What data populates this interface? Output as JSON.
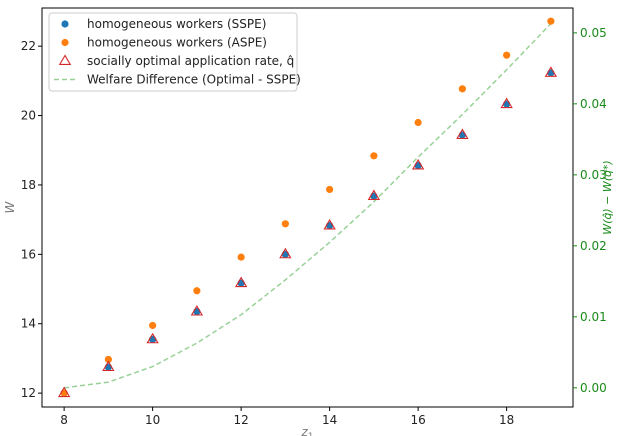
{
  "chart_data": {
    "type": "scatter",
    "xlabel": "z",
    "xlabel_sub": "1",
    "ylabel": "W",
    "ylabel_right": "W(q̂) − W(q*)",
    "xlim": [
      7.5,
      19.5
    ],
    "ylim": [
      11.6,
      23.1
    ],
    "ylim_right": [
      -0.0027,
      0.0535
    ],
    "x_ticks": [
      8,
      10,
      12,
      14,
      16,
      18
    ],
    "y_ticks": [
      12,
      14,
      16,
      18,
      20,
      22
    ],
    "y_ticks_right": [
      0.0,
      0.01,
      0.02,
      0.03,
      0.04,
      0.05
    ],
    "x_tick_labels": [
      "8",
      "10",
      "12",
      "14",
      "16",
      "18"
    ],
    "y_tick_labels": [
      "12",
      "14",
      "16",
      "18",
      "20",
      "22"
    ],
    "y_tick_labels_right": [
      "0.00",
      "0.01",
      "0.02",
      "0.03",
      "0.04",
      "0.05"
    ],
    "x": [
      8,
      9,
      10,
      11,
      12,
      13,
      14,
      15,
      16,
      17,
      18,
      19
    ],
    "series": [
      {
        "name": "homogeneous workers (SSPE)",
        "marker": "circle",
        "color": "#1f77b4",
        "axis": "left",
        "values": [
          12.0,
          12.75,
          13.55,
          14.35,
          15.17,
          16.0,
          16.83,
          17.68,
          18.56,
          19.44,
          20.33,
          21.23
        ]
      },
      {
        "name": "homogeneous workers (ASPE)",
        "marker": "circle",
        "color": "#ff7f0e",
        "axis": "left",
        "values": [
          12.0,
          12.97,
          13.95,
          14.95,
          15.92,
          16.88,
          17.87,
          18.84,
          19.8,
          20.77,
          21.74,
          22.72
        ]
      },
      {
        "name": "socially optimal application rate, q̂",
        "marker": "triangle-open",
        "color": "#d62728",
        "axis": "left",
        "values": [
          12.0,
          12.75,
          13.55,
          14.35,
          15.17,
          16.0,
          16.83,
          17.68,
          18.56,
          19.44,
          20.33,
          21.23
        ]
      },
      {
        "name": "Welfare Difference (Optimal - SSPE)",
        "marker": "dashed-line",
        "color": "#98d198",
        "axis": "right",
        "values": [
          0.0,
          0.0008,
          0.003,
          0.0063,
          0.0103,
          0.0152,
          0.0205,
          0.0262,
          0.0325,
          0.0385,
          0.0448,
          0.0513
        ]
      }
    ],
    "legend": {
      "placement": "top-left",
      "entries": [
        "homogeneous workers (SSPE)",
        "homogeneous workers (ASPE)",
        "socially optimal application rate, q̂",
        "Welfare Difference (Optimal - SSPE)"
      ]
    },
    "grid": false
  }
}
